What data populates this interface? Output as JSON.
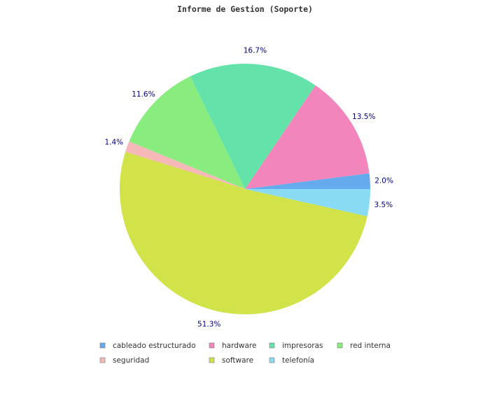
{
  "chart_data": {
    "type": "pie",
    "title": "Informe de Gestion (Soporte)",
    "categories": [
      "cableado estructurado",
      "hardware",
      "impresoras",
      "red interna",
      "seguridad",
      "software",
      "telefonía"
    ],
    "values": [
      2.0,
      13.5,
      16.7,
      11.6,
      1.4,
      51.3,
      3.5
    ],
    "labels": [
      "2.0%",
      "13.5%",
      "16.7%",
      "11.6%",
      "1.4%",
      "51.3%",
      "3.5%"
    ],
    "colors": [
      "#66aaee",
      "#f385bd",
      "#63e3a9",
      "#89ec7f",
      "#f7b8b8",
      "#d2e249",
      "#89daf3"
    ],
    "legend_position": "bottom",
    "start_angle": "3 o'clock",
    "direction": "counterclockwise"
  }
}
